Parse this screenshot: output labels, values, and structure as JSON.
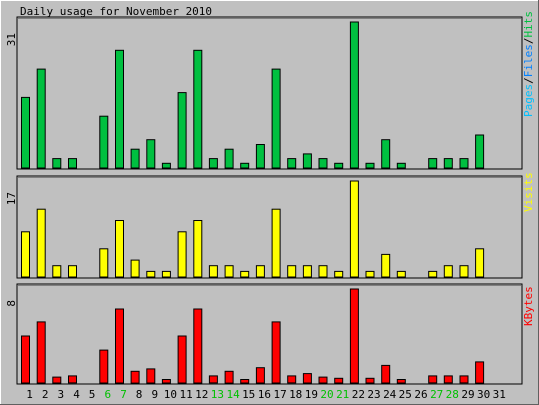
{
  "title": "Daily usage for November 2010",
  "colors": {
    "background": "#c0c0c0",
    "hits": "#00c040",
    "files": "#0080ff",
    "pages": "#00c0ff",
    "visits": "#ffff00",
    "kbytes": "#ff0000",
    "weekend": "#00c000",
    "text": "#000000"
  },
  "legend_top": [
    {
      "text": "Pages",
      "color": "#00c0ff"
    },
    {
      "text": "/",
      "color": "#000000"
    },
    {
      "text": "Files",
      "color": "#0080ff"
    },
    {
      "text": "/",
      "color": "#000000"
    },
    {
      "text": "Hits",
      "color": "#00c040"
    }
  ],
  "legend_mid": {
    "text": "Visits",
    "color": "#ffff00"
  },
  "legend_bot": {
    "text": "KBytes",
    "color": "#ff0000"
  },
  "chart_data": {
    "type": "bar",
    "title": "Daily usage for November 2010",
    "categories": [
      "1",
      "2",
      "3",
      "4",
      "5",
      "6",
      "7",
      "8",
      "9",
      "10",
      "11",
      "12",
      "13",
      "14",
      "15",
      "16",
      "17",
      "18",
      "19",
      "20",
      "21",
      "22",
      "23",
      "24",
      "25",
      "26",
      "27",
      "28",
      "29",
      "30",
      "31"
    ],
    "weekend_days": [
      "6",
      "7",
      "13",
      "14",
      "20",
      "21",
      "27",
      "28"
    ],
    "panels": [
      {
        "name": "Hits",
        "ymax": 31,
        "tick": "31",
        "color": "#00c040",
        "values": [
          15,
          21,
          2,
          2,
          0,
          11,
          25,
          4,
          6,
          1,
          16,
          25,
          2,
          4,
          1,
          5,
          21,
          2,
          3,
          2,
          1,
          31,
          1,
          6,
          1,
          0,
          2,
          2,
          2,
          7,
          0
        ]
      },
      {
        "name": "Visits",
        "ymax": 17,
        "tick": "17",
        "color": "#ffff00",
        "values": [
          8,
          12,
          2,
          2,
          0,
          5,
          10,
          3,
          1,
          1,
          8,
          10,
          2,
          2,
          1,
          2,
          12,
          2,
          2,
          2,
          1,
          17,
          1,
          4,
          1,
          0,
          1,
          2,
          2,
          5,
          0
        ]
      },
      {
        "name": "KBytes",
        "ymax": 8,
        "tick": "8",
        "color": "#ff0000",
        "values": [
          4,
          5.2,
          0.5,
          0.6,
          0,
          2.8,
          6.3,
          1,
          1.2,
          0.3,
          4,
          6.3,
          0.6,
          1,
          0.3,
          1.3,
          5.2,
          0.6,
          0.8,
          0.5,
          0.4,
          8,
          0.4,
          1.5,
          0.3,
          0,
          0.6,
          0.6,
          0.6,
          1.8,
          0
        ]
      }
    ]
  }
}
